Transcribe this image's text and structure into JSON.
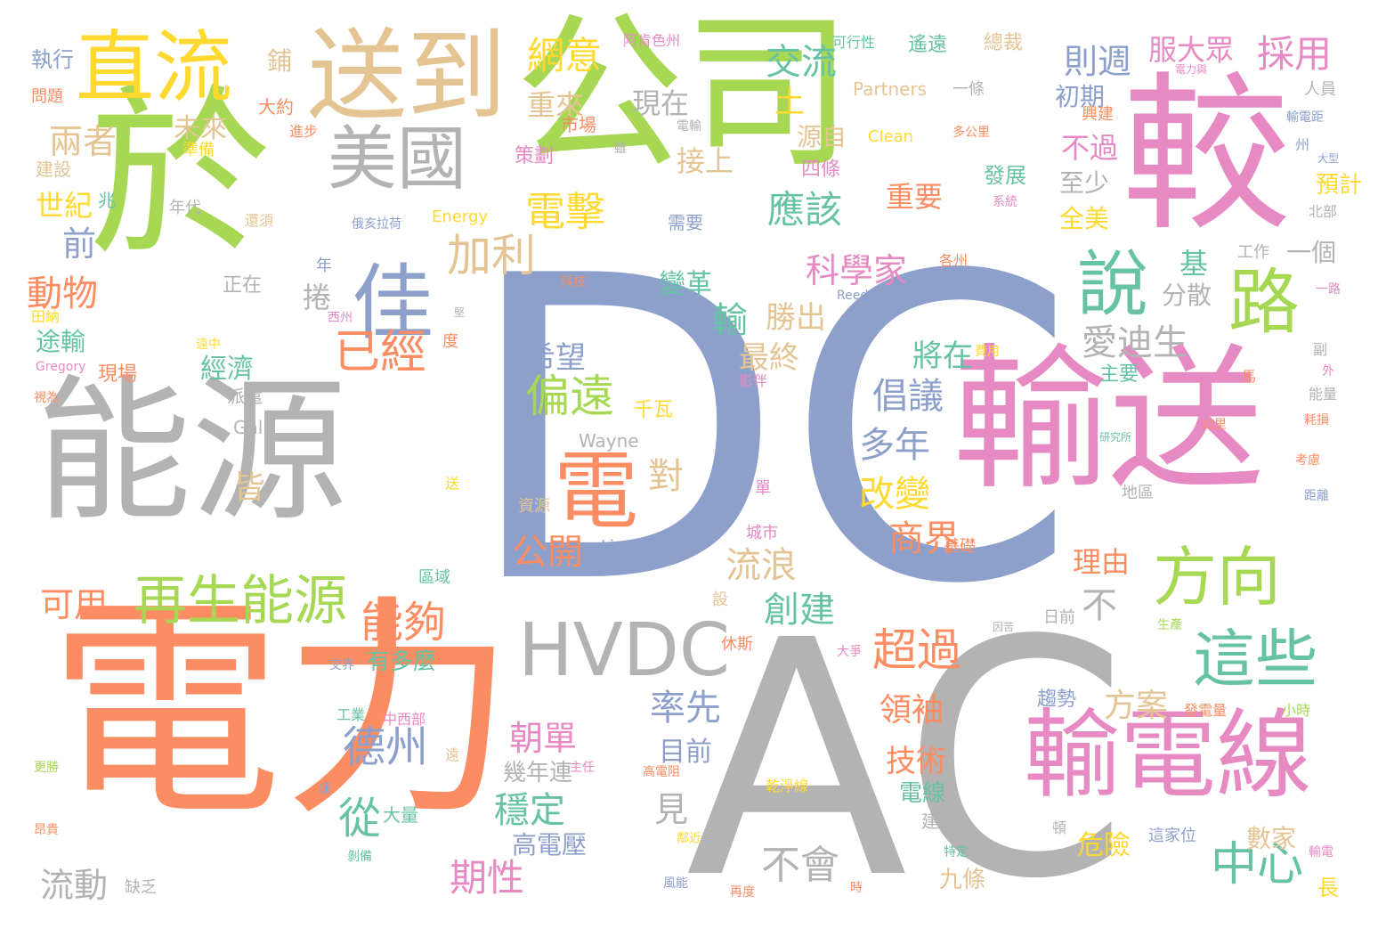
{
  "palette": {
    "blue": "#8DA0CB",
    "orange": "#FC8D62",
    "gray": "#B3B3B3",
    "green": "#A6D854",
    "pink": "#E78AC3",
    "tan": "#E5C494",
    "teal": "#66C2A5",
    "yellow": "#FFD92F"
  },
  "words": [
    {
      "text": "DC",
      "color": "blue"
    },
    {
      "text": "電力",
      "color": "orange"
    },
    {
      "text": "AC",
      "color": "gray"
    },
    {
      "text": "公司",
      "color": "green"
    },
    {
      "text": "於",
      "color": "green"
    },
    {
      "text": "能源",
      "color": "gray"
    },
    {
      "text": "輸送",
      "color": "pink"
    },
    {
      "text": "較",
      "color": "pink"
    },
    {
      "text": "送到",
      "color": "tan"
    },
    {
      "text": "輸電線",
      "color": "pink"
    },
    {
      "text": "直流",
      "color": "yellow"
    },
    {
      "text": "美國",
      "color": "gray"
    },
    {
      "text": "佳",
      "color": "blue"
    },
    {
      "text": "HVDC",
      "color": "gray"
    },
    {
      "text": "電",
      "color": "orange"
    },
    {
      "text": "說",
      "color": "teal"
    },
    {
      "text": "路",
      "color": "green"
    },
    {
      "text": "方向",
      "color": "green"
    },
    {
      "text": "這些",
      "color": "teal"
    },
    {
      "text": "再生能源",
      "color": "green"
    },
    {
      "text": "加利",
      "color": "tan"
    },
    {
      "text": "中心",
      "color": "teal"
    },
    {
      "text": "已經",
      "color": "orange"
    },
    {
      "text": "網意",
      "color": "yellow"
    },
    {
      "text": "交流",
      "color": "teal"
    },
    {
      "text": "則週",
      "color": "blue"
    },
    {
      "text": "服大眾",
      "color": "pink"
    },
    {
      "text": "採用",
      "color": "pink"
    },
    {
      "text": "兩者",
      "color": "tan"
    },
    {
      "text": "未來",
      "color": "tan"
    },
    {
      "text": "世紀",
      "color": "yellow"
    },
    {
      "text": "動物",
      "color": "orange"
    },
    {
      "text": "前",
      "color": "blue"
    },
    {
      "text": "現在",
      "color": "gray"
    },
    {
      "text": "重來",
      "color": "tan"
    },
    {
      "text": "電擊",
      "color": "yellow"
    },
    {
      "text": "應該",
      "color": "teal"
    },
    {
      "text": "科學家",
      "color": "pink"
    },
    {
      "text": "輸",
      "color": "teal"
    },
    {
      "text": "勝出",
      "color": "tan"
    },
    {
      "text": "偏遠",
      "color": "green"
    },
    {
      "text": "希望",
      "color": "blue"
    },
    {
      "text": "德州",
      "color": "blue"
    },
    {
      "text": "從",
      "color": "teal"
    },
    {
      "text": "能夠",
      "color": "orange"
    },
    {
      "text": "超過",
      "color": "orange"
    },
    {
      "text": "愛迪生",
      "color": "gray"
    },
    {
      "text": "倡議",
      "color": "blue"
    },
    {
      "text": "多年",
      "color": "blue"
    },
    {
      "text": "改變",
      "color": "yellow"
    },
    {
      "text": "商界",
      "color": "orange"
    },
    {
      "text": "創建",
      "color": "teal"
    },
    {
      "text": "流浪",
      "color": "tan"
    },
    {
      "text": "不會",
      "color": "gray"
    },
    {
      "text": "可用",
      "color": "orange"
    },
    {
      "text": "期性",
      "color": "pink"
    },
    {
      "text": "流動",
      "color": "gray"
    },
    {
      "text": "率先",
      "color": "blue"
    },
    {
      "text": "朝單",
      "color": "pink"
    },
    {
      "text": "穩定",
      "color": "teal"
    },
    {
      "text": "高電壓",
      "color": "blue"
    },
    {
      "text": "公開",
      "color": "orange"
    },
    {
      "text": "方案",
      "color": "tan"
    },
    {
      "text": "領袖",
      "color": "orange"
    },
    {
      "text": "技術",
      "color": "orange"
    },
    {
      "text": "危險",
      "color": "yellow"
    },
    {
      "text": "全美",
      "color": "yellow"
    },
    {
      "text": "不過",
      "color": "pink"
    },
    {
      "text": "初期",
      "color": "blue"
    },
    {
      "text": "至少",
      "color": "gray"
    },
    {
      "text": "分散",
      "color": "gray"
    },
    {
      "text": "目前",
      "color": "blue"
    },
    {
      "text": "經濟",
      "color": "teal"
    },
    {
      "text": "將在",
      "color": "teal"
    },
    {
      "text": "最終",
      "color": "tan"
    },
    {
      "text": "理由",
      "color": "orange"
    },
    {
      "text": "重要",
      "color": "orange"
    },
    {
      "text": "接上",
      "color": "tan"
    },
    {
      "text": "變革",
      "color": "teal"
    },
    {
      "text": "土",
      "color": "yellow"
    },
    {
      "text": "源自",
      "color": "tan"
    },
    {
      "text": "基",
      "color": "teal"
    },
    {
      "text": "對",
      "color": "tan"
    },
    {
      "text": "見",
      "color": "gray"
    },
    {
      "text": "不",
      "color": "gray"
    },
    {
      "text": "皆",
      "color": "tan"
    },
    {
      "text": "一個",
      "color": "gray"
    },
    {
      "text": "數家",
      "color": "tan"
    },
    {
      "text": "九條",
      "color": "tan"
    },
    {
      "text": "長",
      "color": "yellow"
    },
    {
      "text": "預計",
      "color": "yellow"
    },
    {
      "text": "發展",
      "color": "teal"
    },
    {
      "text": "四條",
      "color": "pink"
    },
    {
      "text": "需要",
      "color": "blue"
    },
    {
      "text": "趨勢",
      "color": "blue"
    },
    {
      "text": "幾年連",
      "color": "gray"
    },
    {
      "text": "途輸",
      "color": "teal"
    },
    {
      "text": "現場",
      "color": "orange"
    },
    {
      "text": "捲",
      "color": "gray"
    },
    {
      "text": "有多麼",
      "color": "teal"
    },
    {
      "text": "策劃",
      "color": "pink"
    },
    {
      "text": "市場",
      "color": "orange"
    },
    {
      "text": "大約",
      "color": "orange"
    },
    {
      "text": "鋪",
      "color": "tan"
    },
    {
      "text": "執行",
      "color": "blue"
    },
    {
      "text": "問題",
      "color": "orange"
    },
    {
      "text": "建設",
      "color": "tan"
    },
    {
      "text": "準備",
      "color": "yellow"
    },
    {
      "text": "進步",
      "color": "orange"
    },
    {
      "text": "兆",
      "color": "teal"
    },
    {
      "text": "年代",
      "color": "gray"
    },
    {
      "text": "還須",
      "color": "tan"
    },
    {
      "text": "俄亥拉荷",
      "color": "blue"
    },
    {
      "text": "年",
      "color": "blue"
    },
    {
      "text": "正在",
      "color": "gray"
    },
    {
      "text": "田納",
      "color": "yellow"
    },
    {
      "text": "遙遠",
      "color": "teal"
    },
    {
      "text": "總裁",
      "color": "tan"
    },
    {
      "text": "阿肯色州",
      "color": "pink"
    },
    {
      "text": "可行性",
      "color": "teal"
    },
    {
      "text": "Partners",
      "color": "tan"
    },
    {
      "text": "Clean",
      "color": "yellow"
    },
    {
      "text": "Energy",
      "color": "yellow"
    },
    {
      "text": "Galli",
      "color": "gray"
    },
    {
      "text": "Wayne",
      "color": "gray"
    },
    {
      "text": "Line",
      "color": "blue"
    },
    {
      "text": "Reed",
      "color": "blue"
    },
    {
      "text": "Gregory",
      "color": "pink"
    },
    {
      "text": "一條",
      "color": "gray"
    },
    {
      "text": "多公里",
      "color": "orange"
    },
    {
      "text": "興建",
      "color": "orange"
    },
    {
      "text": "電力與",
      "color": "pink"
    },
    {
      "text": "人員",
      "color": "gray"
    },
    {
      "text": "輸電距",
      "color": "blue"
    },
    {
      "text": "工作",
      "color": "gray"
    },
    {
      "text": "北部",
      "color": "gray"
    },
    {
      "text": "系統",
      "color": "pink"
    },
    {
      "text": "各州",
      "color": "orange"
    },
    {
      "text": "電輸",
      "color": "gray"
    },
    {
      "text": "雖",
      "color": "gray"
    },
    {
      "text": "西州",
      "color": "pink"
    },
    {
      "text": "科技",
      "color": "orange"
    },
    {
      "text": "遠中",
      "color": "yellow"
    },
    {
      "text": "度",
      "color": "orange"
    },
    {
      "text": "影伴",
      "color": "pink"
    },
    {
      "text": "千瓦",
      "color": "yellow"
    },
    {
      "text": "費用",
      "color": "yellow"
    },
    {
      "text": "主要",
      "color": "teal"
    },
    {
      "text": "副",
      "color": "gray"
    },
    {
      "text": "研究所",
      "color": "teal"
    },
    {
      "text": "公里",
      "color": "orange"
    },
    {
      "text": "單",
      "color": "pink"
    },
    {
      "text": "地區",
      "color": "gray"
    },
    {
      "text": "城市",
      "color": "pink"
    },
    {
      "text": "資源",
      "color": "tan"
    },
    {
      "text": "區域",
      "color": "teal"
    },
    {
      "text": "設",
      "color": "tan"
    },
    {
      "text": "休斯",
      "color": "orange"
    },
    {
      "text": "大爭",
      "color": "pink"
    },
    {
      "text": "交界",
      "color": "blue"
    },
    {
      "text": "工業",
      "color": "teal"
    },
    {
      "text": "中西部",
      "color": "pink"
    },
    {
      "text": "基礎",
      "color": "orange"
    },
    {
      "text": "日前",
      "color": "gray"
    },
    {
      "text": "發電量",
      "color": "orange"
    },
    {
      "text": "高電阻",
      "color": "orange"
    },
    {
      "text": "乾淨線",
      "color": "yellow"
    },
    {
      "text": "這家位",
      "color": "blue"
    },
    {
      "text": "特定",
      "color": "teal"
    },
    {
      "text": "建造",
      "color": "gray"
    },
    {
      "text": "鄰近",
      "color": "yellow"
    },
    {
      "text": "風能",
      "color": "blue"
    },
    {
      "text": "再度",
      "color": "orange"
    },
    {
      "text": "時",
      "color": "orange"
    },
    {
      "text": "昂貴",
      "color": "orange"
    },
    {
      "text": "更勝",
      "color": "green"
    },
    {
      "text": "運",
      "color": "blue"
    },
    {
      "text": "剝備",
      "color": "teal"
    },
    {
      "text": "主任",
      "color": "pink"
    },
    {
      "text": "馬",
      "color": "orange"
    },
    {
      "text": "外",
      "color": "pink"
    },
    {
      "text": "能量",
      "color": "gray"
    },
    {
      "text": "耗損",
      "color": "orange"
    },
    {
      "text": "考慮",
      "color": "orange"
    },
    {
      "text": "距離",
      "color": "blue"
    },
    {
      "text": "州",
      "color": "blue"
    },
    {
      "text": "大型",
      "color": "blue"
    },
    {
      "text": "一路",
      "color": "pink"
    },
    {
      "text": "小時",
      "color": "green"
    },
    {
      "text": "輸電",
      "color": "pink"
    },
    {
      "text": "生產",
      "color": "green"
    },
    {
      "text": "頓",
      "color": "gray"
    },
    {
      "text": "送",
      "color": "yellow"
    },
    {
      "text": "遠",
      "color": "tan"
    },
    {
      "text": "電線",
      "color": "teal"
    },
    {
      "text": "缺乏",
      "color": "gray"
    },
    {
      "text": "大量",
      "color": "teal"
    },
    {
      "text": "派遣",
      "color": "gray"
    },
    {
      "text": "堅",
      "color": "gray"
    },
    {
      "text": "視為",
      "color": "orange"
    },
    {
      "text": "因苦",
      "color": "gray"
    }
  ]
}
